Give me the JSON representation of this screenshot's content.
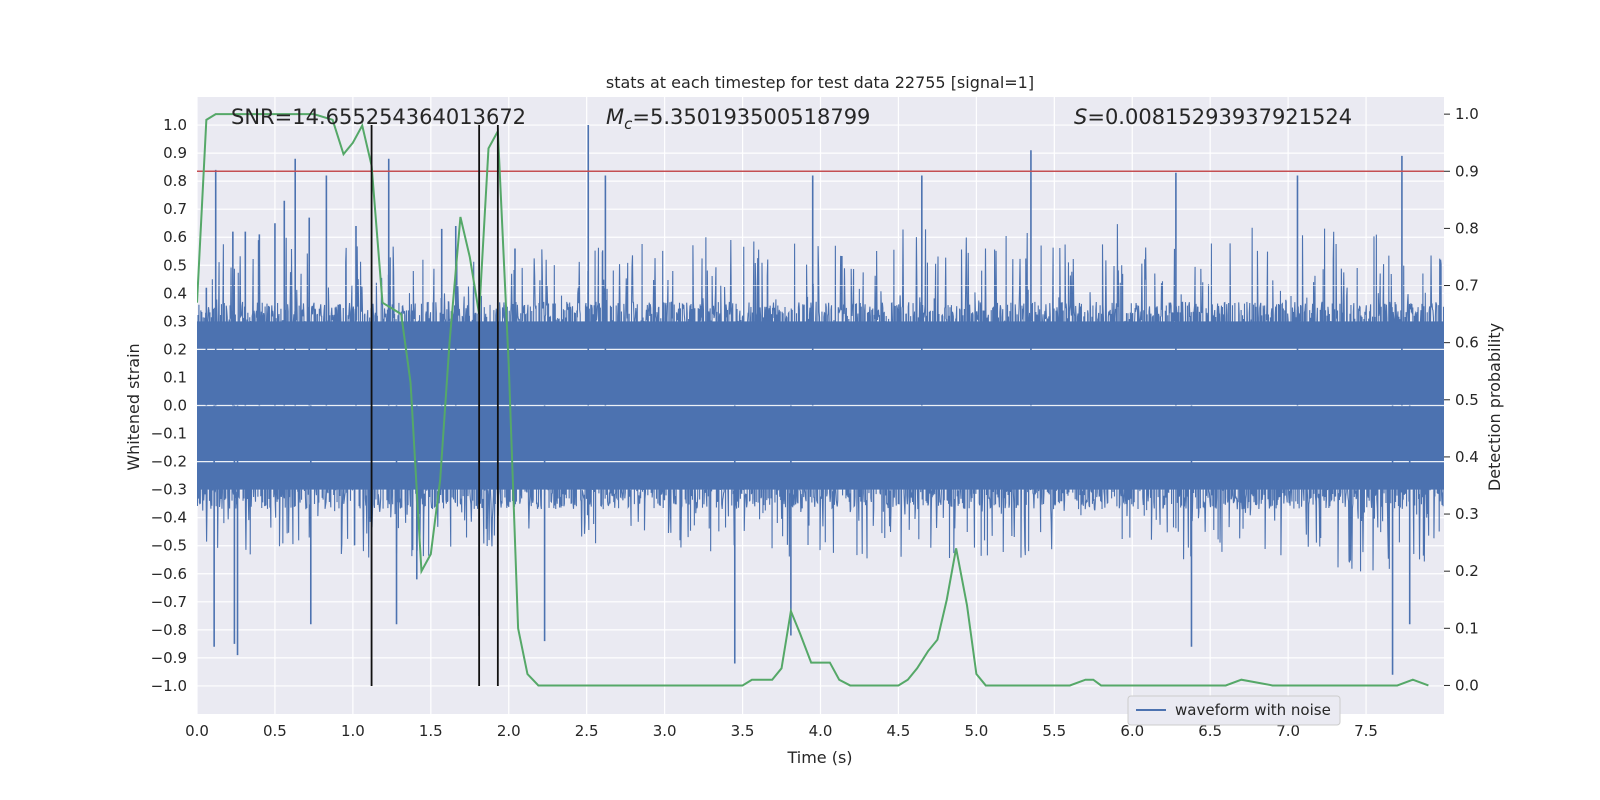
{
  "chart_data": {
    "type": "line",
    "title": "stats at each timestep for test data 22755 [signal=1]",
    "xlabel": "Time (s)",
    "ylabel": "Whitened strain",
    "y2label": "Detection probability",
    "xlim": [
      0.0,
      8.0
    ],
    "ylim": [
      -1.1,
      1.1
    ],
    "y2lim": [
      -0.05,
      1.03
    ],
    "xticks": [
      0.0,
      0.5,
      1.0,
      1.5,
      2.0,
      2.5,
      3.0,
      3.5,
      4.0,
      4.5,
      5.0,
      5.5,
      6.0,
      6.5,
      7.0,
      7.5
    ],
    "yticks": [
      1.0,
      0.9,
      0.8,
      0.7,
      0.6,
      0.5,
      0.4,
      0.3,
      0.2,
      0.1,
      0.0,
      -0.1,
      -0.2,
      -0.3,
      -0.4,
      -0.5,
      -0.6,
      -0.7,
      -0.8,
      -0.9,
      -1.0
    ],
    "y2ticks": [
      1.0,
      0.9,
      0.8,
      0.7,
      0.6,
      0.5,
      0.4,
      0.3,
      0.2,
      0.1,
      0.0
    ],
    "annotations": {
      "snr": "SNR=14.655254364013672",
      "mc_symbol": "M",
      "mc_sub": "c",
      "mc_value": "=5.350193500518799",
      "s_symbol": "S",
      "s_value": "=0.00815293937921524"
    },
    "threshold": {
      "value": 0.9,
      "axis": "y2",
      "color": "#c44e52"
    },
    "vlines": [
      1.12,
      1.81,
      1.93
    ],
    "legend": {
      "label": "waveform with noise",
      "position": "lower-right"
    },
    "series": [
      {
        "name": "waveform with noise",
        "axis": "y",
        "color": "#4c72b0",
        "note": "dense noisy waveform, band approx +/-0.35 with spikes",
        "envelope_x": [
          0.0,
          0.5,
          1.0,
          1.5,
          2.0,
          2.5,
          3.0,
          3.5,
          4.0,
          4.5,
          5.0,
          5.5,
          6.0,
          6.5,
          7.0,
          7.5,
          8.0
        ],
        "envelope_upper": [
          0.6,
          0.6,
          0.6,
          0.6,
          0.55,
          0.6,
          0.6,
          0.6,
          0.6,
          0.65,
          0.6,
          0.65,
          0.65,
          0.65,
          0.65,
          0.65,
          0.6
        ],
        "envelope_lower": [
          -0.55,
          -0.55,
          -0.55,
          -0.55,
          -0.5,
          -0.5,
          -0.5,
          -0.55,
          -0.55,
          -0.55,
          -0.55,
          -0.55,
          -0.55,
          -0.55,
          -0.55,
          -0.6,
          -0.55
        ],
        "spikes": [
          {
            "x": 0.06,
            "y": 0.42
          },
          {
            "x": 0.11,
            "y": -0.86
          },
          {
            "x": 0.12,
            "y": 0.84
          },
          {
            "x": 0.23,
            "y": 0.62
          },
          {
            "x": 0.24,
            "y": -0.85
          },
          {
            "x": 0.26,
            "y": -0.89
          },
          {
            "x": 0.31,
            "y": 0.62
          },
          {
            "x": 0.4,
            "y": 0.61
          },
          {
            "x": 0.5,
            "y": 0.65
          },
          {
            "x": 0.56,
            "y": 0.73
          },
          {
            "x": 0.63,
            "y": 0.88
          },
          {
            "x": 0.72,
            "y": 0.67
          },
          {
            "x": 0.73,
            "y": -0.78
          },
          {
            "x": 0.83,
            "y": 0.82
          },
          {
            "x": 1.02,
            "y": 0.64
          },
          {
            "x": 1.12,
            "y": -0.62
          },
          {
            "x": 1.23,
            "y": 0.88
          },
          {
            "x": 1.28,
            "y": -0.78
          },
          {
            "x": 1.41,
            "y": -0.62
          },
          {
            "x": 1.57,
            "y": 0.63
          },
          {
            "x": 1.66,
            "y": 0.64
          },
          {
            "x": 1.81,
            "y": -0.75
          },
          {
            "x": 2.04,
            "y": 0.56
          },
          {
            "x": 2.23,
            "y": -0.84
          },
          {
            "x": 2.51,
            "y": 1.0
          },
          {
            "x": 2.62,
            "y": 0.82
          },
          {
            "x": 3.45,
            "y": -0.92
          },
          {
            "x": 3.81,
            "y": -0.82
          },
          {
            "x": 3.95,
            "y": 0.82
          },
          {
            "x": 4.65,
            "y": 0.82
          },
          {
            "x": 5.35,
            "y": 0.91
          },
          {
            "x": 6.28,
            "y": 0.83
          },
          {
            "x": 6.38,
            "y": -0.86
          },
          {
            "x": 7.06,
            "y": 0.82
          },
          {
            "x": 7.67,
            "y": -0.96
          },
          {
            "x": 7.73,
            "y": 0.89
          },
          {
            "x": 7.78,
            "y": -0.78
          }
        ]
      },
      {
        "name": "detection probability",
        "axis": "y2",
        "color": "#55a868",
        "x": [
          0.0,
          0.06,
          0.12,
          0.25,
          0.5,
          0.62,
          0.75,
          0.87,
          0.94,
          1.0,
          1.06,
          1.12,
          1.19,
          1.25,
          1.31,
          1.37,
          1.44,
          1.5,
          1.56,
          1.62,
          1.69,
          1.75,
          1.81,
          1.87,
          1.93,
          2.0,
          2.06,
          2.12,
          2.19,
          2.25,
          2.4,
          2.6,
          2.8,
          3.0,
          3.2,
          3.4,
          3.5,
          3.56,
          3.62,
          3.69,
          3.75,
          3.81,
          3.87,
          3.94,
          4.0,
          4.06,
          4.12,
          4.19,
          4.4,
          4.5,
          4.56,
          4.62,
          4.69,
          4.75,
          4.81,
          4.87,
          4.94,
          5.0,
          5.06,
          5.12,
          5.3,
          5.5,
          5.6,
          5.7,
          5.75,
          5.8,
          6.0,
          6.3,
          6.6,
          6.7,
          6.9,
          7.2,
          7.5,
          7.6,
          7.7,
          7.8,
          7.9
        ],
        "values": [
          0.67,
          0.99,
          1.0,
          1.0,
          1.0,
          1.0,
          1.0,
          0.99,
          0.93,
          0.95,
          0.98,
          0.91,
          0.67,
          0.66,
          0.65,
          0.53,
          0.2,
          0.23,
          0.36,
          0.6,
          0.82,
          0.75,
          0.65,
          0.94,
          0.97,
          0.56,
          0.1,
          0.02,
          0.0,
          0.0,
          0.0,
          0.0,
          0.0,
          0.0,
          0.0,
          0.0,
          0.0,
          0.01,
          0.01,
          0.01,
          0.03,
          0.13,
          0.09,
          0.04,
          0.04,
          0.04,
          0.01,
          0.0,
          0.0,
          0.0,
          0.01,
          0.03,
          0.06,
          0.08,
          0.15,
          0.24,
          0.14,
          0.02,
          0.0,
          0.0,
          0.0,
          0.0,
          0.0,
          0.01,
          0.01,
          0.0,
          0.0,
          0.0,
          0.0,
          0.01,
          0.0,
          0.0,
          0.0,
          0.0,
          0.0,
          0.01,
          0.0
        ]
      }
    ]
  }
}
